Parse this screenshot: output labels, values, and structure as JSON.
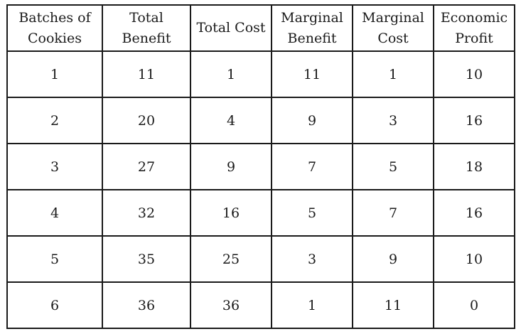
{
  "table": {
    "headers": [
      "Batches of\nCookies",
      "Total\nBenefit",
      "Total Cost",
      "Marginal\nBenefit",
      "Marginal\nCost",
      "Economic\nProfit"
    ],
    "rows": [
      [
        "1",
        "11",
        "1",
        "11",
        "1",
        "10"
      ],
      [
        "2",
        "20",
        "4",
        "9",
        "3",
        "16"
      ],
      [
        "3",
        "27",
        "9",
        "7",
        "5",
        "18"
      ],
      [
        "4",
        "32",
        "16",
        "5",
        "7",
        "16"
      ],
      [
        "5",
        "35",
        "25",
        "3",
        "9",
        "10"
      ],
      [
        "6",
        "36",
        "36",
        "1",
        "11",
        "0"
      ]
    ]
  }
}
